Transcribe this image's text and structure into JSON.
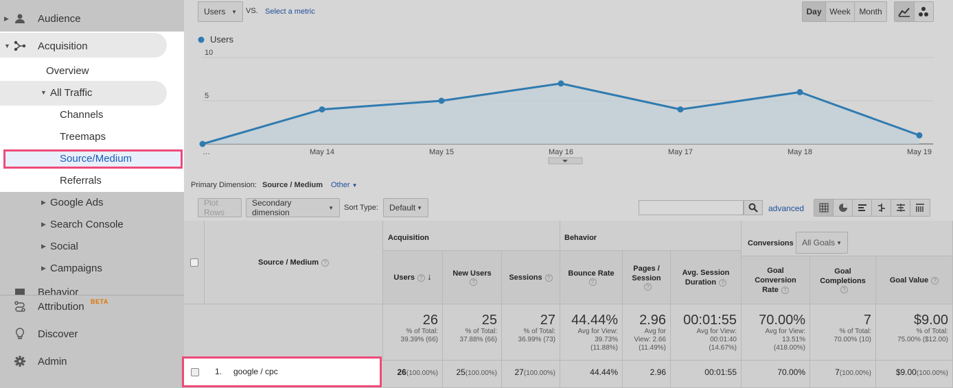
{
  "sidebar": {
    "audience": "Audience",
    "acquisition": "Acquisition",
    "overview": "Overview",
    "all_traffic": "All Traffic",
    "channels": "Channels",
    "treemaps": "Treemaps",
    "source_medium": "Source/Medium",
    "referrals": "Referrals",
    "google_ads": "Google Ads",
    "search_console": "Search Console",
    "social": "Social",
    "campaigns": "Campaigns",
    "behavior": "Behavior",
    "attribution": "Attribution",
    "beta": "BETA",
    "discover": "Discover",
    "admin": "Admin"
  },
  "toolbar": {
    "metric": "Users",
    "vs": "VS.",
    "select_metric": "Select a metric",
    "day": "Day",
    "week": "Week",
    "month": "Month"
  },
  "chart_data": {
    "type": "line",
    "legend": "Users",
    "x": [
      "…",
      "May 14",
      "May 15",
      "May 16",
      "May 17",
      "May 18",
      "May 19"
    ],
    "y_ticks": [
      "10",
      "5"
    ],
    "values": [
      0,
      4,
      5,
      7,
      4,
      6,
      1
    ],
    "ylim": [
      0,
      10
    ],
    "color": "#2f7bb0"
  },
  "dimension": {
    "label": "Primary Dimension:",
    "value": "Source / Medium",
    "other": "Other"
  },
  "controls": {
    "plot_rows": "Plot Rows",
    "secondary": "Secondary dimension",
    "sort_type_label": "Sort Type:",
    "sort_type": "Default",
    "advanced": "advanced"
  },
  "table": {
    "groups": {
      "acquisition": "Acquisition",
      "behavior": "Behavior",
      "conversions": "Conversions",
      "goals": "All Goals"
    },
    "columns": {
      "source": "Source / Medium",
      "users": "Users",
      "new_users": "New Users",
      "sessions": "Sessions",
      "bounce": "Bounce Rate",
      "pages_l1": "Pages /",
      "pages_l2": "Session",
      "dur_l1": "Avg. Session",
      "dur_l2": "Duration",
      "gcr_l1": "Goal",
      "gcr_l2": "Conversion",
      "gcr_l3": "Rate",
      "gc_l1": "Goal",
      "gc_l2": "Completions",
      "gv": "Goal Value"
    },
    "totals": {
      "users": "26",
      "users_s1": "% of Total:",
      "users_s2": "39.39% (66)",
      "new_users": "25",
      "new_s1": "% of Total:",
      "new_s2": "37.88% (66)",
      "sessions": "27",
      "ses_s1": "% of Total:",
      "ses_s2": "36.99% (73)",
      "bounce": "44.44%",
      "b_s1": "Avg for View:",
      "b_s2": "39.73%",
      "b_s3": "(11.88%)",
      "pages": "2.96",
      "p_s1": "Avg for",
      "p_s2": "View: 2.66",
      "p_s3": "(11.49%)",
      "dur": "00:01:55",
      "d_s1": "Avg for View:",
      "d_s2": "00:01:40",
      "d_s3": "(14.67%)",
      "gcr": "70.00%",
      "g_s1": "Avg for View:",
      "g_s2": "13.51%",
      "g_s3": "(418.00%)",
      "gc": "7",
      "gc_s1": "% of Total:",
      "gc_s2": "70.00% (10)",
      "gv": "$9.00",
      "gv_s1": "% of Total:",
      "gv_s2": "75.00% ($12.00)"
    },
    "row": {
      "index": "1.",
      "source": "google / cpc",
      "users": "26",
      "users_pc": "(100.00%)",
      "new_users": "25",
      "new_pc": "(100.00%)",
      "sessions": "27",
      "ses_pc": "(100.00%)",
      "bounce": "44.44%",
      "pages": "2.96",
      "dur": "00:01:55",
      "gcr": "70.00%",
      "gc": "7",
      "gc_pc": "(100.00%)",
      "gv": "$9.00",
      "gv_pc": "(100.00%)"
    }
  }
}
